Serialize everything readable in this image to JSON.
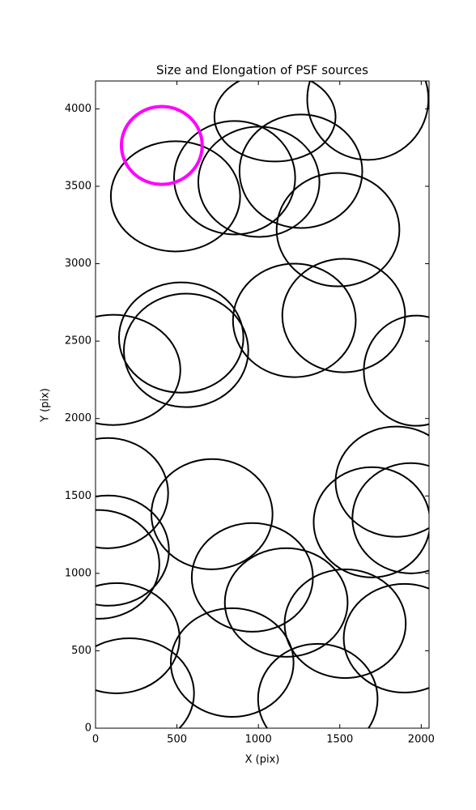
{
  "chart_data": {
    "type": "ellipse",
    "title": "Size and Elongation of PSF sources",
    "x_label": "X (pix)",
    "y_label": "Y (pix)",
    "xlim": [
      0,
      2048
    ],
    "ylim": [
      0,
      4180
    ],
    "xticks": [
      0,
      500,
      1000,
      1500,
      2000
    ],
    "yticks": [
      0,
      500,
      1000,
      1500,
      2000,
      2500,
      3000,
      3500,
      4000
    ],
    "series": [
      {
        "color": "#000000",
        "x": [
          491,
          854,
          1003,
          1102,
          1672,
          1261,
          1489,
          526,
          556,
          109,
          1221,
          1524,
          1970,
          74,
          79,
          20,
          715,
          1846,
          1697,
          1935,
          963,
          1171,
          1533,
          129,
          208,
          839,
          1365,
          1896
        ],
        "y": [
          3435,
          3555,
          3529,
          3948,
          4063,
          3597,
          3220,
          2523,
          2440,
          2314,
          2634,
          2665,
          2309,
          1518,
          1147,
          1058,
          1382,
          1592,
          1330,
          1356,
          974,
          812,
          675,
          581,
          225,
          424,
          189,
          581
        ],
        "widths": [
          794,
          744,
          744,
          744,
          744,
          754,
          754,
          764,
          764,
          824,
          754,
          754,
          645,
          744,
          744,
          744,
          744,
          744,
          715,
          715,
          744,
          754,
          744,
          774,
          794,
          754,
          734,
          744
        ],
        "heights": [
          712,
          733,
          712,
          576,
          785,
          733,
          733,
          712,
          733,
          712,
          733,
          733,
          712,
          712,
          712,
          702,
          712,
          712,
          712,
          712,
          702,
          702,
          702,
          712,
          712,
          702,
          712,
          702
        ]
      },
      {
        "color": "#ff00ff",
        "x": [
          407
        ],
        "y": [
          3764
        ],
        "widths": [
          496
        ],
        "heights": [
          503
        ]
      }
    ]
  }
}
